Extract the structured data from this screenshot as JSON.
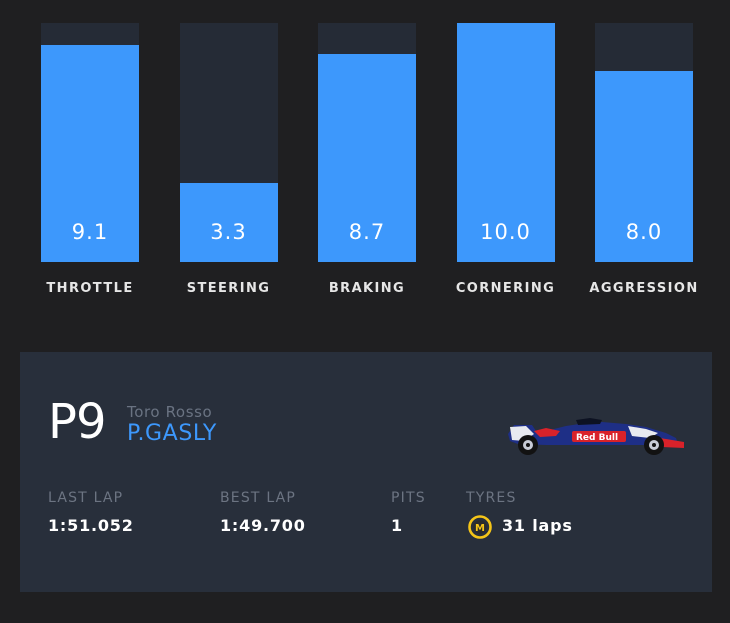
{
  "metrics": [
    {
      "label": "THROTTLE",
      "value": "9.1",
      "score": 9.1
    },
    {
      "label": "STEERING",
      "value": "3.3",
      "score": 3.3
    },
    {
      "label": "BRAKING",
      "value": "8.7",
      "score": 8.7
    },
    {
      "label": "CORNERING",
      "value": "10.0",
      "score": 10.0
    },
    {
      "label": "AGGRESSION",
      "value": "8.0",
      "score": 8.0
    }
  ],
  "metric_max": 10,
  "driver": {
    "position": "P9",
    "team": "Toro Rosso",
    "name": "P.GASLY"
  },
  "stats": {
    "last_lap_label": "LAST LAP",
    "last_lap": "1:51.052",
    "best_lap_label": "BEST LAP",
    "best_lap": "1:49.700",
    "pits_label": "PITS",
    "pits": "1",
    "tyres_label": "TYRES",
    "tyre_compound": "M",
    "tyres": "31 laps"
  },
  "colors": {
    "background": "#1f1f21",
    "bar_track": "#252b36",
    "bar_fill": "#3d98fc",
    "card": "#282f3b",
    "driver_name": "#3d98fc",
    "medium_tyre": "#f5c518"
  },
  "icons": {
    "car": "car-livery-icon",
    "tyre": "medium-tyre-icon"
  }
}
